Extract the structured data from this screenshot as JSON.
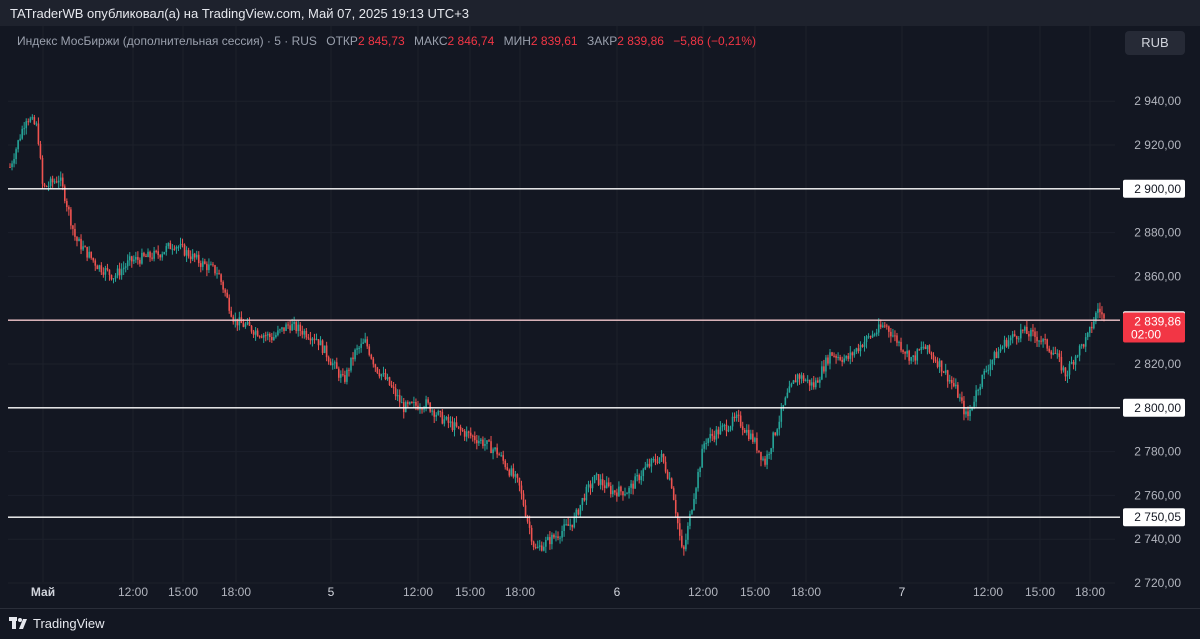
{
  "header": {
    "publisher_line": "TATraderWB опубликовал(а) на TradingView.com, Май 07, 2025 19:13 UTC+3"
  },
  "legend": {
    "symbol": "Индекс МосБиржи (дополнительная сессия) · 5 · RUS",
    "open_label": "ОТКР",
    "open_value": "2 845,73",
    "high_label": "МАКС",
    "high_value": "2 846,74",
    "low_label": "МИН",
    "low_value": "2 839,61",
    "close_label": "ЗАКР",
    "close_value": "2 839,86",
    "change": "−5,86 (−0,21%)"
  },
  "currency_button": "RUB",
  "footer": {
    "brand": "TradingView"
  },
  "colors": {
    "up": "#26a69a",
    "down": "#ef5350",
    "background": "#131722",
    "price_badge": "#f23645"
  },
  "chart_data": {
    "type": "candlestick",
    "x_tick_labels": [
      "Май",
      "12:00",
      "15:00",
      "18:00",
      "5",
      "12:00",
      "15:00",
      "18:00",
      "6",
      "12:00",
      "15:00",
      "18:00",
      "7",
      "12:00",
      "15:00",
      "18:00"
    ],
    "y_ticks": [
      2720,
      2740,
      2760,
      2780,
      2800,
      2820,
      2840,
      2860,
      2880,
      2900,
      2920,
      2940
    ],
    "y_tick_labels": [
      "2 720,00",
      "2 740,00",
      "2 760,00",
      "2 780,00",
      "2 800,00",
      "2 820,00",
      "2 840,00",
      "2 860,00",
      "2 880,00",
      "2 900,00",
      "2 920,00",
      "2 940,00"
    ],
    "ylim": [
      2710,
      2950
    ],
    "horizontal_levels": [
      {
        "value": 2900.0,
        "label": "2 900,00"
      },
      {
        "value": 2840.0,
        "label": "2 840,00"
      },
      {
        "value": 2800.0,
        "label": "2 800,00"
      },
      {
        "value": 2750.05,
        "label": "2 750,05"
      }
    ],
    "last_price": {
      "value": 2839.86,
      "label": "2 839,86",
      "countdown": "02:00"
    },
    "price_path": [
      {
        "x": 0,
        "y": 2910
      },
      {
        "x": 3,
        "y": 2933
      },
      {
        "x": 5,
        "y": 2928
      },
      {
        "x": 6,
        "y": 2900
      },
      {
        "x": 9,
        "y": 2905
      },
      {
        "x": 10,
        "y": 2897
      },
      {
        "x": 12,
        "y": 2877
      },
      {
        "x": 16,
        "y": 2865
      },
      {
        "x": 19,
        "y": 2860
      },
      {
        "x": 22,
        "y": 2867
      },
      {
        "x": 27,
        "y": 2870
      },
      {
        "x": 30,
        "y": 2875
      },
      {
        "x": 35,
        "y": 2866
      },
      {
        "x": 38,
        "y": 2862
      },
      {
        "x": 41,
        "y": 2840
      },
      {
        "x": 45,
        "y": 2835
      },
      {
        "x": 48,
        "y": 2832
      },
      {
        "x": 51,
        "y": 2838
      },
      {
        "x": 56,
        "y": 2832
      },
      {
        "x": 59,
        "y": 2820
      },
      {
        "x": 61,
        "y": 2812
      },
      {
        "x": 63,
        "y": 2825
      },
      {
        "x": 65,
        "y": 2830
      },
      {
        "x": 67,
        "y": 2818
      },
      {
        "x": 69,
        "y": 2812
      },
      {
        "x": 72,
        "y": 2800
      },
      {
        "x": 76,
        "y": 2802
      },
      {
        "x": 79,
        "y": 2795
      },
      {
        "x": 82,
        "y": 2790
      },
      {
        "x": 86,
        "y": 2785
      },
      {
        "x": 89,
        "y": 2780
      },
      {
        "x": 93,
        "y": 2765
      },
      {
        "x": 96,
        "y": 2735
      },
      {
        "x": 100,
        "y": 2742
      },
      {
        "x": 103,
        "y": 2748
      },
      {
        "x": 105,
        "y": 2760
      },
      {
        "x": 107,
        "y": 2768
      },
      {
        "x": 110,
        "y": 2762
      },
      {
        "x": 113,
        "y": 2762
      },
      {
        "x": 116,
        "y": 2772
      },
      {
        "x": 119,
        "y": 2778
      },
      {
        "x": 121,
        "y": 2765
      },
      {
        "x": 123,
        "y": 2732
      },
      {
        "x": 125,
        "y": 2760
      },
      {
        "x": 127,
        "y": 2785
      },
      {
        "x": 130,
        "y": 2790
      },
      {
        "x": 133,
        "y": 2795
      },
      {
        "x": 136,
        "y": 2785
      },
      {
        "x": 138,
        "y": 2775
      },
      {
        "x": 140,
        "y": 2790
      },
      {
        "x": 142,
        "y": 2805
      },
      {
        "x": 144,
        "y": 2815
      },
      {
        "x": 147,
        "y": 2810
      },
      {
        "x": 150,
        "y": 2825
      },
      {
        "x": 153,
        "y": 2822
      },
      {
        "x": 156,
        "y": 2830
      },
      {
        "x": 160,
        "y": 2838
      },
      {
        "x": 163,
        "y": 2828
      },
      {
        "x": 165,
        "y": 2822
      },
      {
        "x": 167,
        "y": 2828
      },
      {
        "x": 170,
        "y": 2820
      },
      {
        "x": 173,
        "y": 2808
      },
      {
        "x": 175,
        "y": 2795
      },
      {
        "x": 177,
        "y": 2810
      },
      {
        "x": 179,
        "y": 2820
      },
      {
        "x": 182,
        "y": 2830
      },
      {
        "x": 185,
        "y": 2835
      },
      {
        "x": 188,
        "y": 2832
      },
      {
        "x": 191,
        "y": 2825
      },
      {
        "x": 193,
        "y": 2815
      },
      {
        "x": 195,
        "y": 2825
      },
      {
        "x": 197,
        "y": 2832
      },
      {
        "x": 199,
        "y": 2846
      },
      {
        "x": 200,
        "y": 2839.86
      }
    ]
  }
}
